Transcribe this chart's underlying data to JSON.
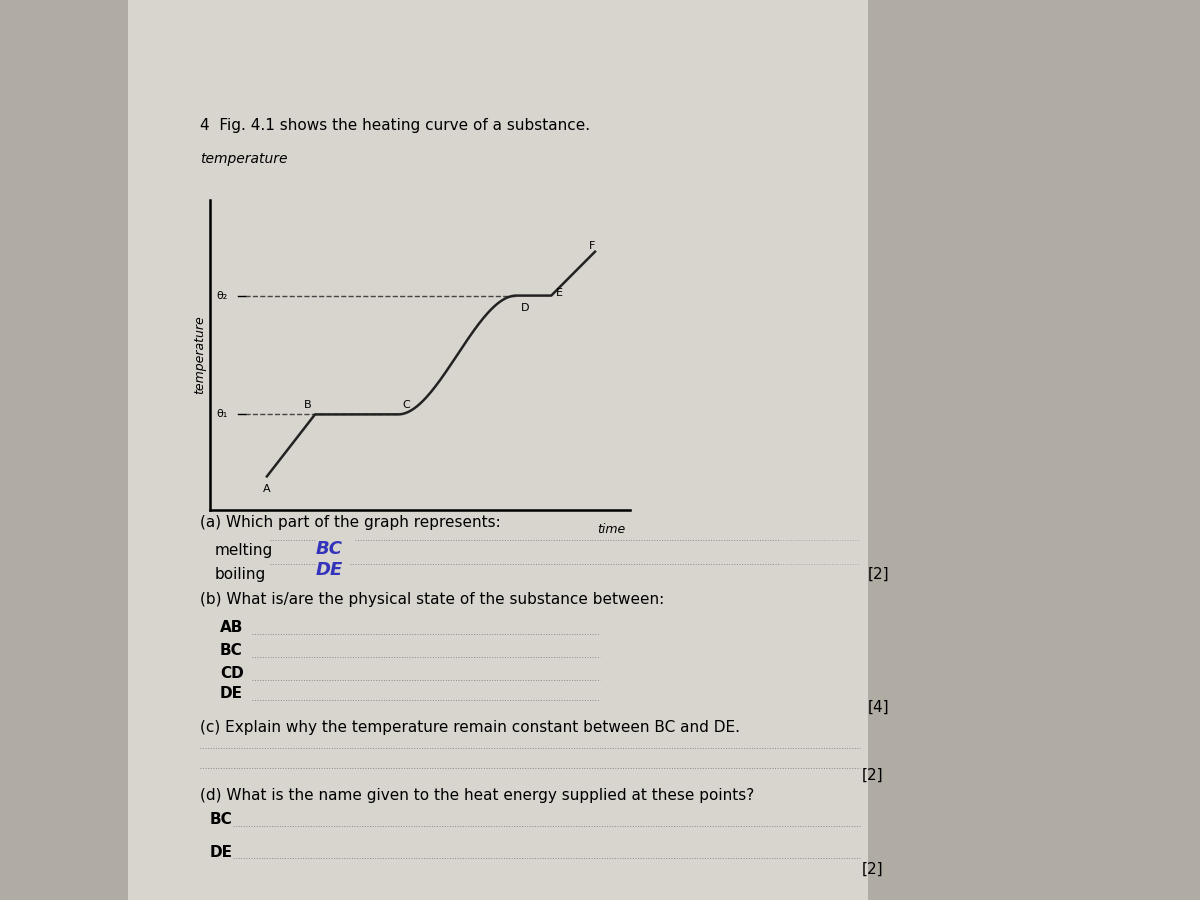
{
  "bg_outer": "#b0aca4",
  "bg_page": "#d8d5ce",
  "title_question": "4  Fig. 4.1 shows the heating curve of a substance.",
  "fig_label": "Fig. 4.1",
  "ylabel": "temperature",
  "xlabel": "time",
  "theta2_label": "θ₂",
  "theta1_label": "θ₁",
  "curve_color": "#222222",
  "dashed_color": "#444444",
  "q_a": "(a) Which part of the graph represents:",
  "q_b": "(b) What is/are the physical state of the substance between:",
  "q_c": "(c) Explain why the temperature remain constant between BC and DE.",
  "q_d": "(d) What is the name given to the heat energy supplied at these points?",
  "melting_label": "melting",
  "boiling_label": "boiling",
  "melting_answer": "BC",
  "boiling_answer": "DE",
  "sub_b": [
    "AB",
    "BC",
    "CD",
    "DE"
  ],
  "bc_label": "BC",
  "de_label": "DE",
  "marks_2": "[2]",
  "marks_4": "[4]"
}
